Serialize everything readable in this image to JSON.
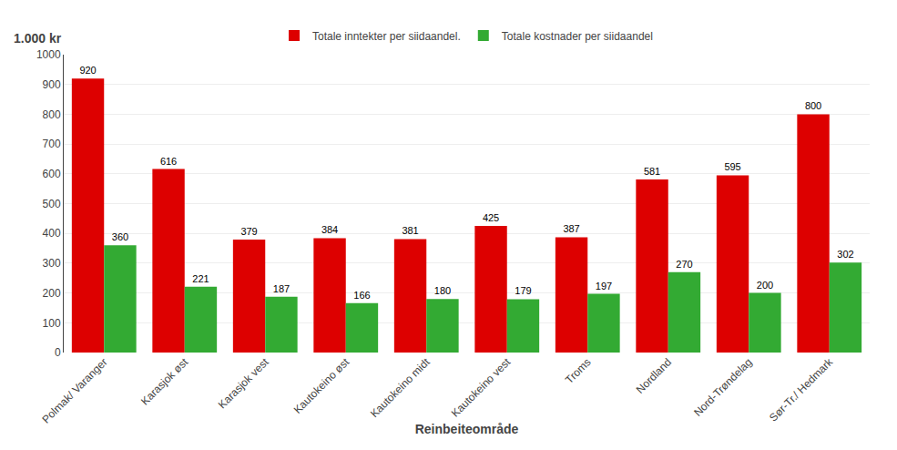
{
  "chart_data": {
    "type": "bar",
    "ylabel": "1.000 kr",
    "xlabel": "Reinbeiteområde",
    "categories": [
      "Polmak/ Varanger",
      "Karasjok øst",
      "Karasjok vest",
      "Kautokeino øst",
      "Kautokeino midt",
      "Kautokeino vest",
      "Troms",
      "Nordland",
      "Nord-Trøndelag",
      "Sør-Tr./ Hedmark"
    ],
    "series": [
      {
        "name": "Totale inntekter per siidaandel.",
        "color": "#dd0000",
        "values": [
          920,
          616,
          379,
          384,
          381,
          425,
          387,
          581,
          595,
          800
        ]
      },
      {
        "name": "Totale kostnader per siidaandel",
        "color": "#33aa33",
        "values": [
          360,
          221,
          187,
          166,
          180,
          179,
          197,
          270,
          200,
          302
        ]
      }
    ],
    "ylim": [
      0,
      1000
    ],
    "yticks": [
      0,
      100,
      200,
      300,
      400,
      500,
      600,
      700,
      800,
      900,
      1000
    ],
    "grid": true,
    "legend": "top",
    "data_labels": true
  }
}
